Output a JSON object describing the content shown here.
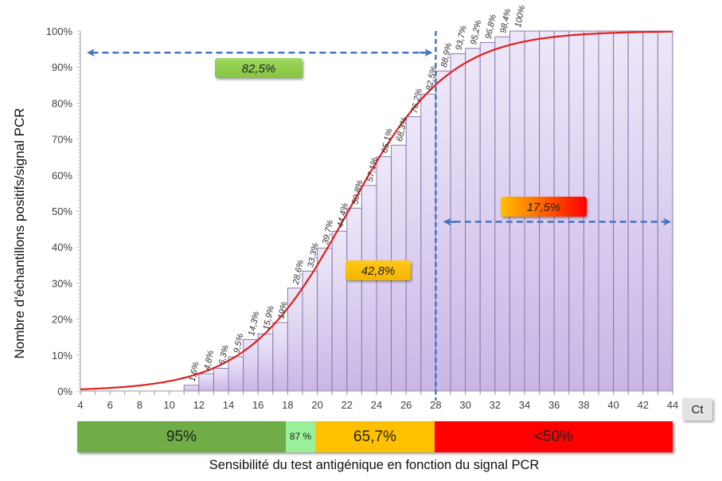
{
  "chart_data": {
    "type": "bar",
    "subtype": "cumulative histogram with fitted sigmoid line",
    "ylabel": "Nombre d'échantillons positifs/signal PCR",
    "xlabel": "Ct",
    "ylim": [
      0,
      100
    ],
    "xlim": [
      4,
      44
    ],
    "y_ticks": [
      "0%",
      "10%",
      "20%",
      "30%",
      "40%",
      "50%",
      "60%",
      "70%",
      "80%",
      "90%",
      "100%"
    ],
    "x_ticks": [
      "4",
      "6",
      "8",
      "10",
      "12",
      "14",
      "16",
      "18",
      "20",
      "22",
      "24",
      "26",
      "28",
      "30",
      "32",
      "34",
      "36",
      "38",
      "40",
      "42",
      "44"
    ],
    "bar_start_ct": 11,
    "bar_width_ct": 1,
    "bars": [
      {
        "ct": 11,
        "value": 1.6,
        "label": "1,6%"
      },
      {
        "ct": 12,
        "value": 4.8,
        "label": "4,8%"
      },
      {
        "ct": 13,
        "value": 6.3,
        "label": "6,3%"
      },
      {
        "ct": 14,
        "value": 9.5,
        "label": "9,5%"
      },
      {
        "ct": 15,
        "value": 14.3,
        "label": "14,3%"
      },
      {
        "ct": 16,
        "value": 15.9,
        "label": "15,9%"
      },
      {
        "ct": 17,
        "value": 19.0,
        "label": "19%"
      },
      {
        "ct": 18,
        "value": 28.6,
        "label": "28,6%"
      },
      {
        "ct": 19,
        "value": 33.3,
        "label": "33,3%"
      },
      {
        "ct": 20,
        "value": 39.7,
        "label": "39,7%"
      },
      {
        "ct": 21,
        "value": 44.4,
        "label": "44,4%"
      },
      {
        "ct": 22,
        "value": 50.8,
        "label": "50,8%"
      },
      {
        "ct": 23,
        "value": 57.1,
        "label": "57,1%"
      },
      {
        "ct": 24,
        "value": 65.1,
        "label": "65,1%"
      },
      {
        "ct": 25,
        "value": 68.3,
        "label": "68,3%"
      },
      {
        "ct": 26,
        "value": 76.2,
        "label": "76,2%"
      },
      {
        "ct": 27,
        "value": 82.5,
        "label": "82,5%"
      },
      {
        "ct": 28,
        "value": 88.9,
        "label": "88,9%"
      },
      {
        "ct": 29,
        "value": 93.7,
        "label": "93,7%"
      },
      {
        "ct": 30,
        "value": 95.2,
        "label": "95,2%"
      },
      {
        "ct": 31,
        "value": 96.8,
        "label": "96,8%"
      },
      {
        "ct": 32,
        "value": 98.4,
        "label": "98,4%"
      },
      {
        "ct": 33,
        "value": 100,
        "label": "100%"
      },
      {
        "ct": 34,
        "value": 100,
        "label": ""
      },
      {
        "ct": 35,
        "value": 100,
        "label": ""
      },
      {
        "ct": 36,
        "value": 100,
        "label": ""
      },
      {
        "ct": 37,
        "value": 100,
        "label": ""
      },
      {
        "ct": 38,
        "value": 100,
        "label": ""
      },
      {
        "ct": 39,
        "value": 100,
        "label": ""
      },
      {
        "ct": 40,
        "value": 100,
        "label": ""
      },
      {
        "ct": 41,
        "value": 100,
        "label": ""
      },
      {
        "ct": 42,
        "value": 100,
        "label": ""
      },
      {
        "ct": 43,
        "value": 100,
        "label": ""
      }
    ],
    "fit_curve": {
      "type": "logistic",
      "midpoint_ct": 22.1,
      "slope": 0.295,
      "color": "#e02020"
    },
    "cutoff_line": {
      "ct": 28,
      "color": "#4472c4"
    },
    "annotations": [
      {
        "id": "left-share",
        "text": "82,5%",
        "arrow_from_ct": 28,
        "arrow_to_ct": 4,
        "arrow_y": 94,
        "box_color": "#92d050"
      },
      {
        "id": "mid-share",
        "text": "42,8%",
        "box_color": "#ffc000"
      },
      {
        "id": "right-share",
        "text": "17,5%",
        "arrow_from_ct": 28.5,
        "arrow_to_ct": 44,
        "arrow_y": 47,
        "box_color_start": "#ffc000",
        "box_color_end": "#ff0000"
      }
    ],
    "colors": {
      "bar_fill_top": "#ede8f8",
      "bar_fill_bottom": "#c9b6e6",
      "bar_stroke": "#8a78b0",
      "axis": "#9a9a9a"
    }
  },
  "axis_unit_label": "Ct",
  "sensitivity_bar": {
    "title": "Sensibilité du test antigénique en fonction du signal PCR",
    "segments": [
      {
        "label": "95%",
        "from_ct": 4,
        "to_ct": 18,
        "color": "#70ad47"
      },
      {
        "label": "87 %",
        "from_ct": 18,
        "to_ct": 20,
        "color": "#99f099"
      },
      {
        "label": "65,7%",
        "from_ct": 20,
        "to_ct": 28,
        "color": "#ffc000"
      },
      {
        "label": "<50%",
        "from_ct": 28,
        "to_ct": 44,
        "color": "#ff0000"
      }
    ]
  }
}
